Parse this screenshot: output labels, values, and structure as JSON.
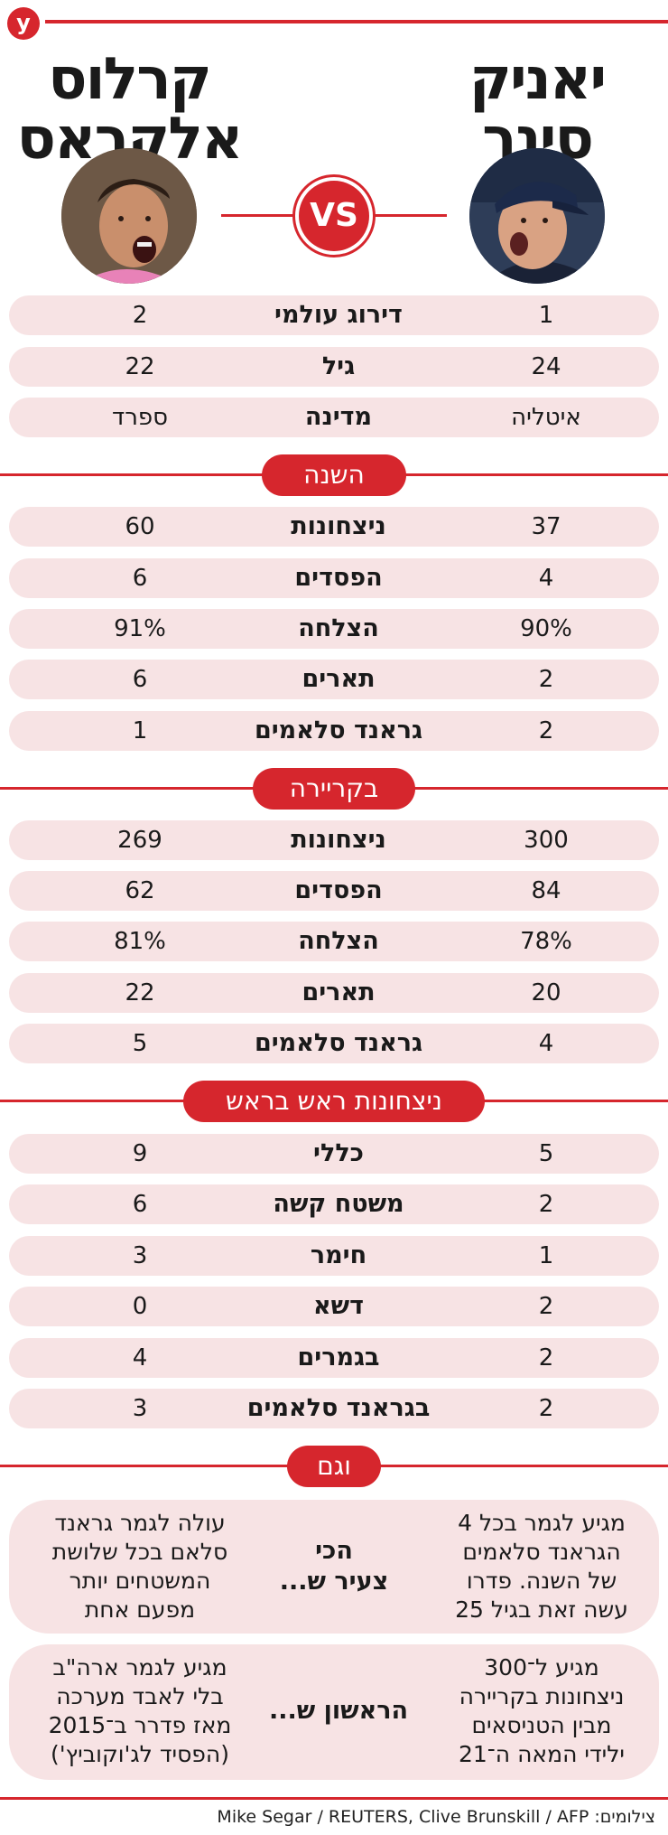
{
  "logo": "y",
  "players": {
    "p1": {
      "name_line1": "יאניק",
      "name_line2": "סינר"
    },
    "p2": {
      "name_line1": "קרלוס",
      "name_line2": "אלקראס"
    }
  },
  "vs_label": "VS",
  "general": [
    {
      "label": "דירוג עולמי",
      "p1": "1",
      "p2": "2"
    },
    {
      "label": "גיל",
      "p1": "24",
      "p2": "22"
    },
    {
      "label": "מדינה",
      "p1": "איטליה",
      "p2": "ספרד"
    }
  ],
  "sections": {
    "year": {
      "title": "השנה",
      "rows": [
        {
          "label": "ניצחונות",
          "p1": "37",
          "p2": "60"
        },
        {
          "label": "הפסדים",
          "p1": "4",
          "p2": "6"
        },
        {
          "label": "הצלחה",
          "p1": "90%",
          "p2": "91%"
        },
        {
          "label": "תארים",
          "p1": "2",
          "p2": "6"
        },
        {
          "label": "גראנד סלאמים",
          "p1": "2",
          "p2": "1"
        }
      ]
    },
    "career": {
      "title": "בקריירה",
      "rows": [
        {
          "label": "ניצחונות",
          "p1": "300",
          "p2": "269"
        },
        {
          "label": "הפסדים",
          "p1": "84",
          "p2": "62"
        },
        {
          "label": "הצלחה",
          "p1": "78%",
          "p2": "81%"
        },
        {
          "label": "תארים",
          "p1": "20",
          "p2": "22"
        },
        {
          "label": "גראנד סלאמים",
          "p1": "4",
          "p2": "5"
        }
      ]
    },
    "h2h": {
      "title": "ניצחונות ראש בראש",
      "rows": [
        {
          "label": "כללי",
          "p1": "5",
          "p2": "9"
        },
        {
          "label": "משטח קשה",
          "p1": "2",
          "p2": "6"
        },
        {
          "label": "חימר",
          "p1": "1",
          "p2": "3"
        },
        {
          "label": "דשא",
          "p1": "2",
          "p2": "0"
        },
        {
          "label": "בגמרים",
          "p1": "2",
          "p2": "4"
        },
        {
          "label": "בגראנד סלאמים",
          "p1": "2",
          "p2": "3"
        }
      ]
    },
    "also": {
      "title": "וגם",
      "rows": [
        {
          "label_lines": [
            "הכי",
            "צעיר ש..."
          ],
          "p1_lines": [
            "מגיע לגמר בכל 4",
            "הגראנד סלאמים",
            "של השנה. פדרו",
            "עשה זאת בגיל 25"
          ],
          "p2_lines": [
            "עולה לגמר גראנד",
            "סלאם בכל שלושת",
            "המשטחים יותר",
            "מפעם אחת"
          ]
        },
        {
          "label_lines": [
            "הראשון ש..."
          ],
          "p1_lines": [
            "מגיע ל־300",
            "ניצחונות בקריירה",
            "מבין הטניסאים",
            "ילידי המאה ה־21"
          ],
          "p2_lines": [
            "מגיע לגמר ארה\"ב",
            "בלי לאבד מערכה",
            "מאז פדרר ב־2015",
            "(הפסיד לג'וקוביץ')"
          ]
        }
      ]
    }
  },
  "credit": "צילומים: Mike Segar / REUTERS, Clive Brunskill / AFP",
  "colors": {
    "accent": "#d6262d",
    "row_bg": "#f7e3e4"
  }
}
